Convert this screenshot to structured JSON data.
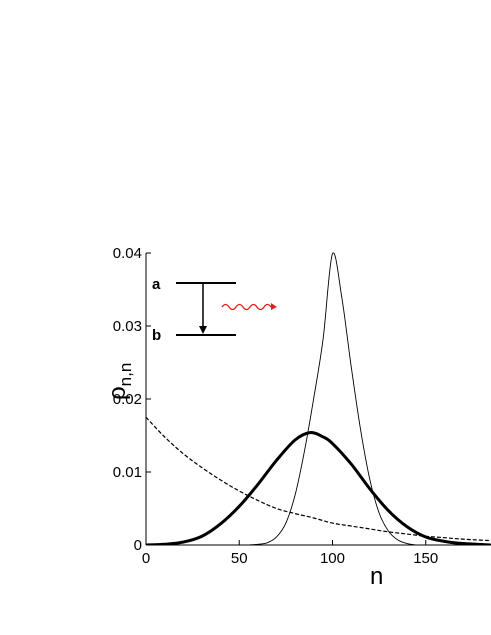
{
  "chart_data": {
    "type": "line",
    "xlabel": "n",
    "ylabel_main": "ρ",
    "ylabel_sub": "n,n",
    "xlim": [
      0,
      185
    ],
    "ylim": [
      0,
      0.04
    ],
    "xticks": [
      0,
      50,
      100,
      150
    ],
    "xtick_labels": [
      "0",
      "50",
      "100",
      "150"
    ],
    "yticks": [
      0,
      0.01,
      0.02,
      0.03,
      0.04
    ],
    "ytick_labels": [
      "0",
      "0.01",
      "0.02",
      "0.03",
      "0.04"
    ],
    "grid": false,
    "series": [
      {
        "style": "thin-solid",
        "x": [
          55,
          60,
          65,
          70,
          75,
          80,
          85,
          90,
          95,
          100,
          105,
          110,
          115,
          120,
          125,
          130,
          135,
          140,
          145
        ],
        "y": [
          0.0,
          0.0001,
          0.0003,
          0.0011,
          0.003,
          0.0069,
          0.0129,
          0.0202,
          0.0283,
          0.0399,
          0.0339,
          0.0245,
          0.0159,
          0.009,
          0.0044,
          0.0019,
          0.0007,
          0.0002,
          0.0
        ]
      },
      {
        "style": "thick-solid",
        "x": [
          0,
          10,
          20,
          30,
          40,
          50,
          60,
          70,
          80,
          88,
          95,
          100,
          110,
          120,
          130,
          140,
          150,
          160,
          170,
          185
        ],
        "y": [
          0.0,
          0.0001,
          0.0004,
          0.0012,
          0.0029,
          0.0053,
          0.0083,
          0.0116,
          0.0144,
          0.0154,
          0.0148,
          0.0139,
          0.0111,
          0.0077,
          0.0047,
          0.0025,
          0.0011,
          0.0005,
          0.0002,
          0.0
        ]
      },
      {
        "style": "dashed",
        "x": [
          0,
          10,
          20,
          30,
          40,
          50,
          60,
          70,
          80,
          90,
          100,
          110,
          120,
          130,
          140,
          150,
          160,
          170,
          185
        ],
        "y": [
          0.0175,
          0.0148,
          0.0125,
          0.0106,
          0.0089,
          0.0074,
          0.0061,
          0.005,
          0.0043,
          0.0037,
          0.003,
          0.0026,
          0.0022,
          0.0018,
          0.0015,
          0.0012,
          0.001,
          0.0008,
          0.0006
        ]
      }
    ],
    "inset": {
      "level_upper": "a",
      "level_lower": "b"
    }
  }
}
